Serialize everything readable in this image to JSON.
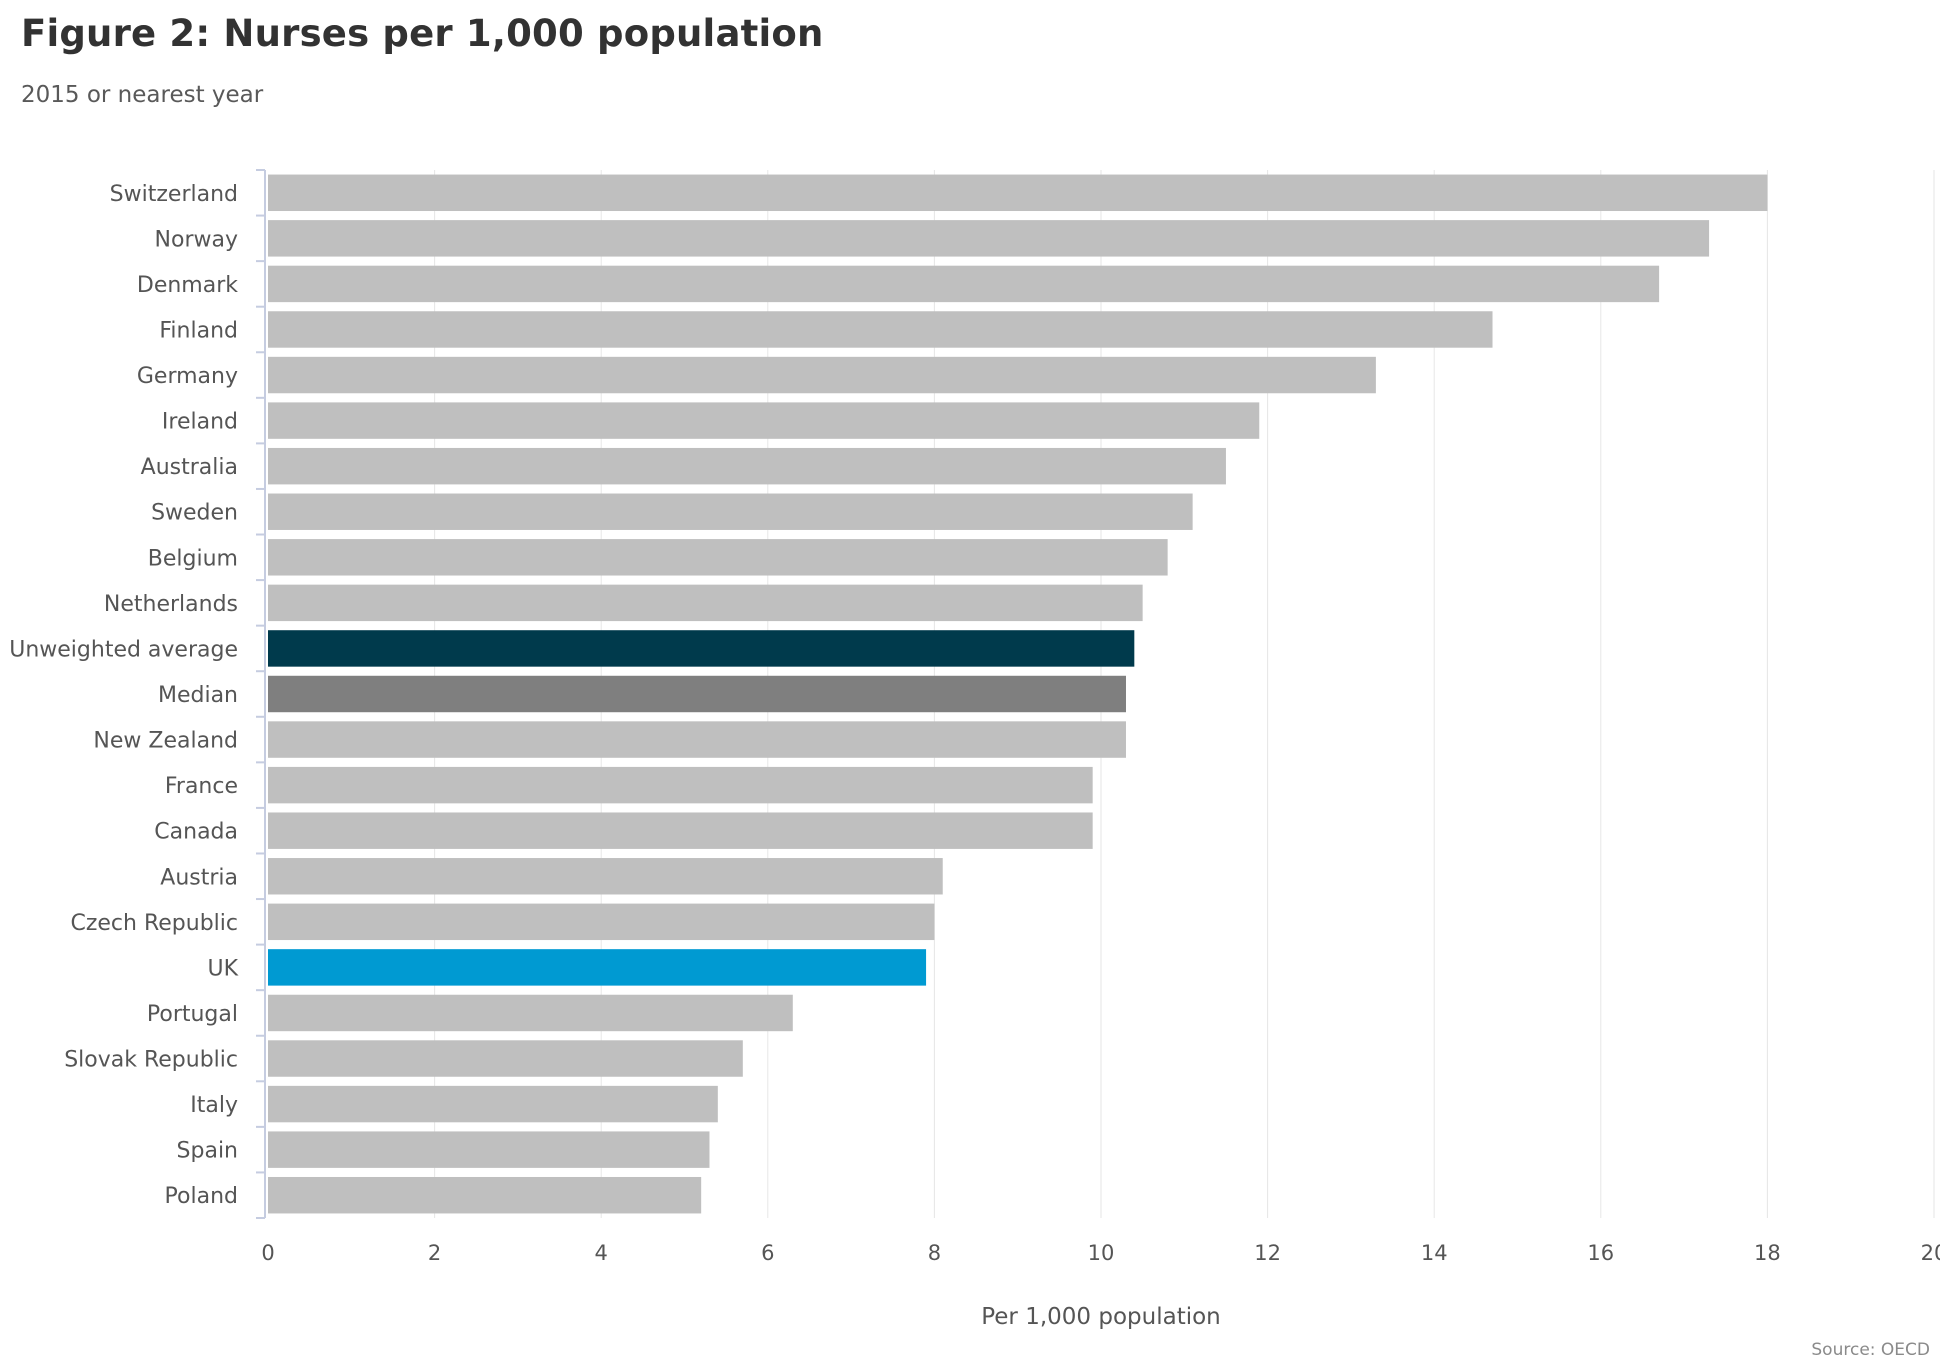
{
  "chart_data": {
    "type": "bar",
    "orientation": "horizontal",
    "title": "Figure 2: Nurses per 1,000 population",
    "subtitle": "2015 or nearest year",
    "xlabel": "Per 1,000 population",
    "ylabel": "",
    "xlim": [
      0,
      20
    ],
    "x_ticks": [
      0,
      2,
      4,
      6,
      8,
      10,
      12,
      14,
      16,
      18,
      20
    ],
    "grid": true,
    "legend": "none",
    "source": "Source: OECD",
    "categories": [
      "Switzerland",
      "Norway",
      "Denmark",
      "Finland",
      "Germany",
      "Ireland",
      "Australia",
      "Sweden",
      "Belgium",
      "Netherlands",
      "Unweighted average",
      "Median",
      "New Zealand",
      "France",
      "Canada",
      "Austria",
      "Czech Republic",
      "UK",
      "Portugal",
      "Slovak Republic",
      "Italy",
      "Spain",
      "Poland"
    ],
    "values": [
      18.0,
      17.3,
      16.7,
      14.7,
      13.3,
      11.9,
      11.5,
      11.1,
      10.8,
      10.5,
      10.4,
      10.3,
      10.3,
      9.9,
      9.9,
      8.1,
      8.0,
      7.9,
      6.3,
      5.7,
      5.4,
      5.3,
      5.2
    ],
    "colors": {
      "default": "#bfbfbf",
      "Unweighted average": "#003a4c",
      "Median": "#7f7f7f",
      "UK": "#009ad2"
    }
  }
}
